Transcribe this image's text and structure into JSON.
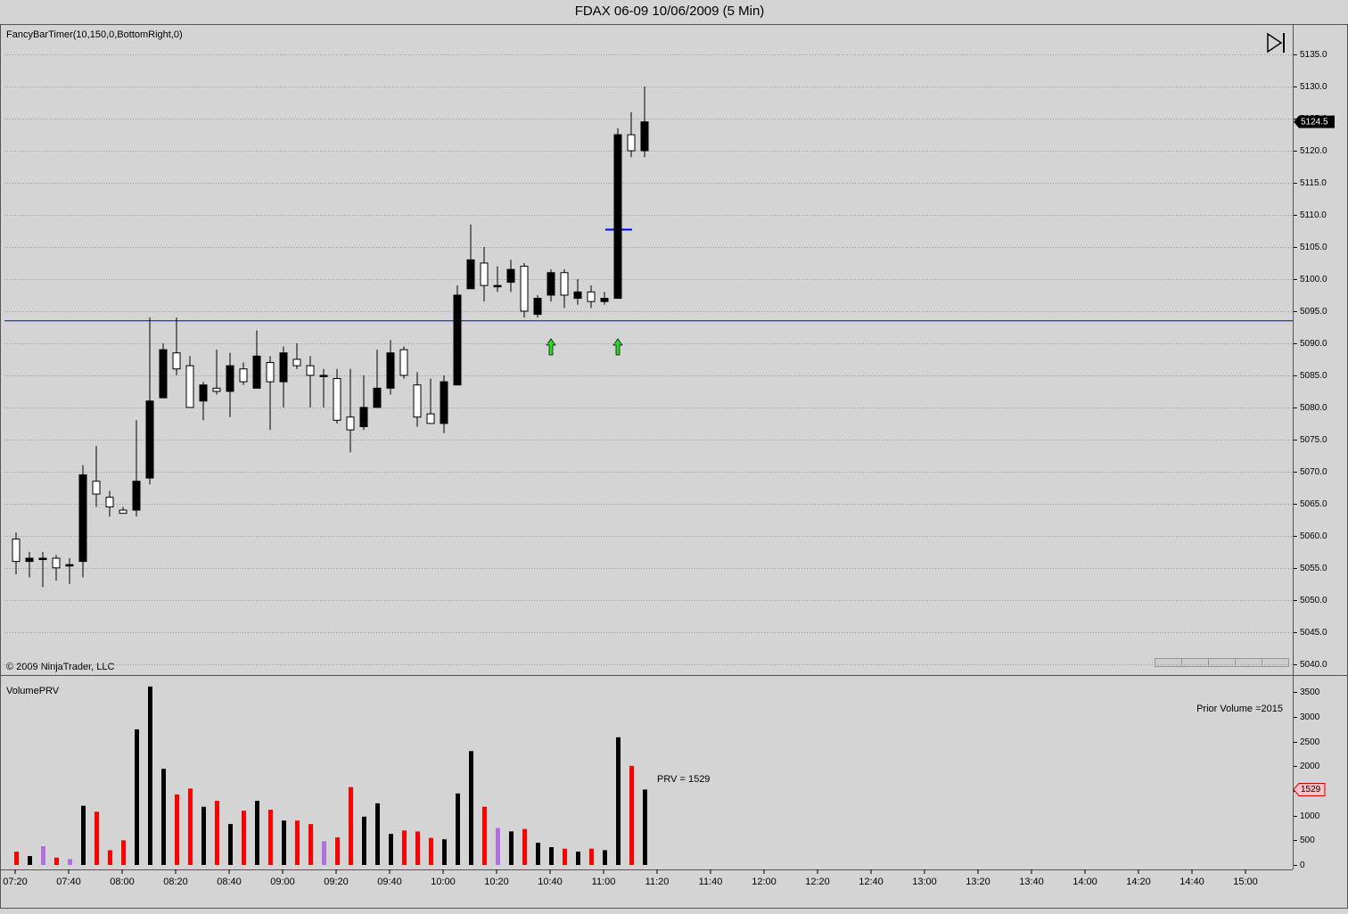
{
  "window_title": "FDAX 06-09  10/06/2009 (5 Min)",
  "chart_data": [
    {
      "type": "candlestick",
      "indicator_label": "FancyBarTimer(10,150,0,BottomRight,0)",
      "copyright": "© 2009 NinjaTrader, LLC",
      "xticks": [
        "07:20",
        "07:40",
        "08:00",
        "08:20",
        "08:40",
        "09:00",
        "09:20",
        "09:40",
        "10:00",
        "10:20",
        "10:40",
        "11:00",
        "11:20",
        "11:40",
        "12:00",
        "12:20",
        "12:40",
        "13:00",
        "13:20",
        "13:40",
        "14:00",
        "14:20",
        "14:40",
        "15:00"
      ],
      "open": [
        5059.5,
        5056,
        5056.5,
        5056.5,
        5055.5,
        5056,
        5068.5,
        5066,
        5064,
        5064,
        5069,
        5081.5,
        5088.5,
        5086.5,
        5081,
        5083,
        5082.5,
        5086,
        5083,
        5087,
        5084,
        5087.5,
        5086.5,
        5085,
        5084.5,
        5078.5,
        5077,
        5080,
        5083,
        5089,
        5083.5,
        5079,
        5077.5,
        5083.5,
        5098.5,
        5102.5,
        5099,
        5099.5,
        5102,
        5094.5,
        5097.5,
        5101,
        5097,
        5098,
        5096.5,
        5097,
        5122.5,
        5120
      ],
      "high": [
        5060.5,
        5057.5,
        5057.5,
        5057,
        5056.5,
        5071,
        5074,
        5067,
        5064.5,
        5078,
        5094,
        5090,
        5094,
        5088,
        5084,
        5089,
        5088.5,
        5087,
        5092,
        5088,
        5089.5,
        5090,
        5088,
        5086,
        5086,
        5086,
        5085,
        5089,
        5090.5,
        5089.5,
        5085.5,
        5084.5,
        5085,
        5099,
        5108.5,
        5105,
        5102,
        5103,
        5102.5,
        5097.5,
        5101.5,
        5101.5,
        5100,
        5099,
        5098,
        5123.5,
        5126,
        5130
      ],
      "low": [
        5054,
        5053.5,
        5052,
        5053,
        5052.5,
        5053.5,
        5064.5,
        5063,
        5063.5,
        5063,
        5068,
        5081.5,
        5085,
        5080,
        5078,
        5082,
        5078.5,
        5083.5,
        5083,
        5076.5,
        5080,
        5086,
        5080,
        5080,
        5077.5,
        5073,
        5076.5,
        5080,
        5082,
        5084.5,
        5077,
        5077.5,
        5076,
        5083.5,
        5098.5,
        5096.5,
        5098,
        5098,
        5094,
        5094,
        5096.5,
        5095.5,
        5096,
        5095.5,
        5096,
        5097,
        5119,
        5119
      ],
      "close": [
        5056,
        5056.5,
        5056.5,
        5055,
        5055.5,
        5069.5,
        5066.5,
        5064.5,
        5063.5,
        5068.5,
        5081,
        5089,
        5086,
        5080,
        5083.5,
        5082.5,
        5086.5,
        5084,
        5088,
        5084,
        5088.5,
        5086.5,
        5085,
        5085,
        5078,
        5076.5,
        5080,
        5083,
        5088.5,
        5085,
        5078.5,
        5077.5,
        5084,
        5097.5,
        5103,
        5099,
        5099,
        5101.5,
        5095,
        5097,
        5101,
        5097.5,
        5098,
        5096.5,
        5097,
        5122.5,
        5120,
        5124.5
      ],
      "up_color": "#000000",
      "down_color": "#ffffff",
      "hline": 5093.5,
      "hline_color": "#0000ff",
      "ylim": [
        5038.3,
        5139.6
      ],
      "yticks": [
        {
          "value": 5040,
          "label": "5040.0"
        },
        {
          "value": 5045,
          "label": "5045.0"
        },
        {
          "value": 5050,
          "label": "5050.0"
        },
        {
          "value": 5055,
          "label": "5055.0"
        },
        {
          "value": 5060,
          "label": "5060.0"
        },
        {
          "value": 5065,
          "label": "5065.0"
        },
        {
          "value": 5070,
          "label": "5070.0"
        },
        {
          "value": 5075,
          "label": "5075.0"
        },
        {
          "value": 5080,
          "label": "5080.0"
        },
        {
          "value": 5085,
          "label": "5085.0"
        },
        {
          "value": 5090,
          "label": "5090.0"
        },
        {
          "value": 5095,
          "label": "5095.0"
        },
        {
          "value": 5100,
          "label": "5100.0"
        },
        {
          "value": 5105,
          "label": "5105.0"
        },
        {
          "value": 5110,
          "label": "5110.0"
        },
        {
          "value": 5115,
          "label": "5115.0"
        },
        {
          "value": 5120,
          "label": "5120.0"
        },
        {
          "value": 5125,
          "label": "5125.0"
        },
        {
          "value": 5130,
          "label": "5130.0"
        },
        {
          "value": 5135,
          "label": "5135.0"
        }
      ],
      "grid": true
    },
    {
      "type": "bar",
      "indicator_label": "VolumePRV",
      "annotation": "PRV = 1529",
      "prior_volume_label": "Prior Volume =2015",
      "values": [
        270,
        180,
        380,
        150,
        120,
        1200,
        1080,
        300,
        500,
        2750,
        3620,
        1950,
        1430,
        1550,
        1180,
        1300,
        830,
        1100,
        1300,
        1120,
        900,
        900,
        830,
        480,
        560,
        1580,
        980,
        1250,
        630,
        700,
        680,
        550,
        520,
        1450,
        2310,
        1180,
        750,
        680,
        730,
        450,
        360,
        330,
        270,
        330,
        300,
        2590,
        2010,
        1529
      ],
      "up_color": "#000000",
      "down_color": "#ff0000",
      "flat_color": "#b070dd",
      "ylim": [
        0,
        3780
      ],
      "yticks": [
        0,
        500,
        1000,
        1500,
        2000,
        2500,
        3000,
        3500
      ]
    }
  ]
}
